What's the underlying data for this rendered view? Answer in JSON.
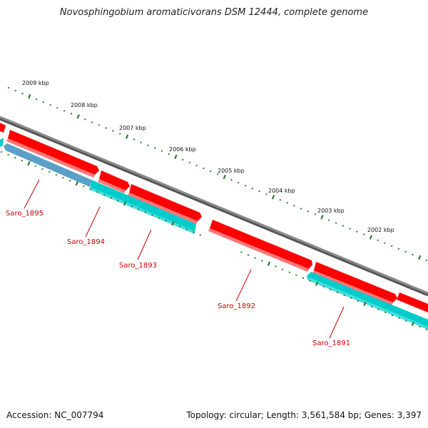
{
  "title": "Novosphingobium aromaticivorans DSM 12444, complete genome",
  "footer": {
    "accession": "Accession: NC_007794",
    "summary": "Topology: circular; Length: 3,561,584 bp; Genes: 3,397"
  },
  "colors": {
    "backbone": "#8a8a8a",
    "forward_gene": "#ff0000",
    "reverse_gene": "#00cccc",
    "label": "#cc0000",
    "tick": "#2e7d32",
    "selected": "#5aa0c8"
  },
  "kbp_ticks": [
    {
      "label": "2009 kbp"
    },
    {
      "label": "2008 kbp"
    },
    {
      "label": "2007 kbp"
    },
    {
      "label": "2006 kbp"
    },
    {
      "label": "2005 kbp"
    },
    {
      "label": "2004 kbp"
    },
    {
      "label": "2003 kbp"
    },
    {
      "label": "2002 kbp"
    }
  ],
  "genes": [
    {
      "locus": "Saro_1895",
      "strand": "reverse"
    },
    {
      "locus": "Saro_1894",
      "strand": "reverse"
    },
    {
      "locus": "Saro_1893",
      "strand": "reverse"
    },
    {
      "locus": "Saro_1892",
      "strand": "forward"
    },
    {
      "locus": "Saro_1891",
      "strand": "reverse"
    }
  ]
}
